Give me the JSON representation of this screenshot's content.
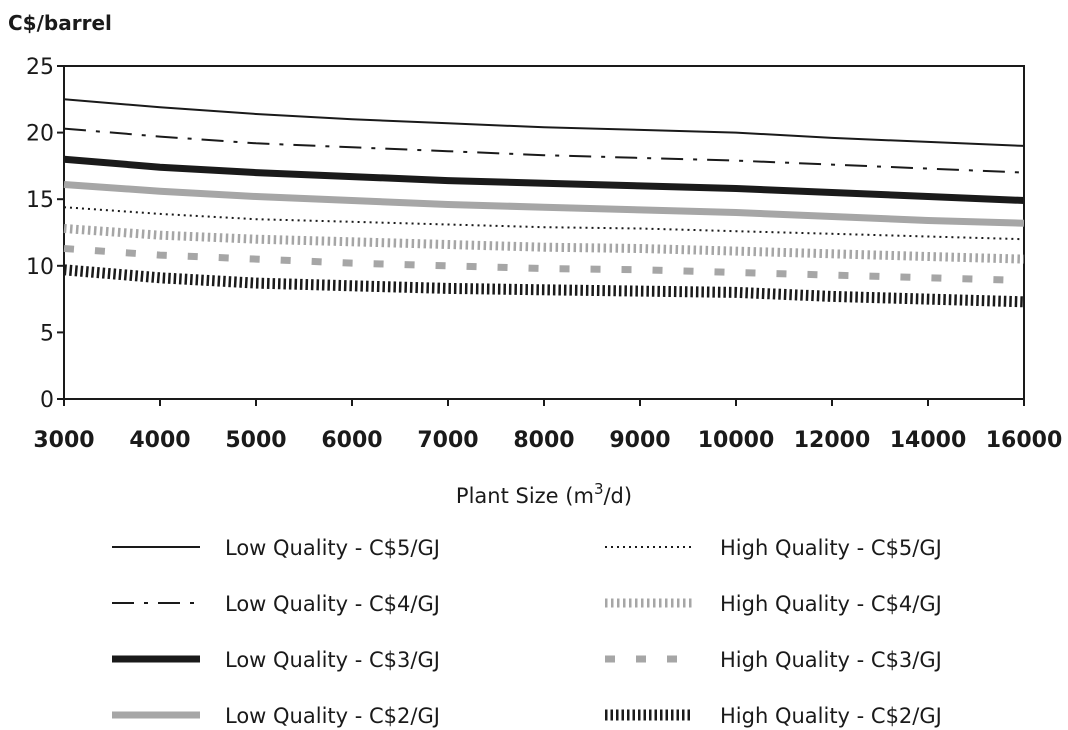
{
  "chart_data": {
    "type": "line",
    "title": "",
    "ylabel": "C$/barrel",
    "xlabel_prefix": "Plant Size (m",
    "xlabel_sup": "3",
    "xlabel_suffix": "/d)",
    "ylim": [
      0,
      25
    ],
    "yticks": [
      "0",
      "5",
      "10",
      "15",
      "20",
      "25"
    ],
    "categories": [
      "3000",
      "4000",
      "5000",
      "6000",
      "7000",
      "8000",
      "9000",
      "10000",
      "12000",
      "14000",
      "16000"
    ],
    "grid": false,
    "legend_position": "bottom",
    "series": [
      {
        "name": "Low Quality -  C$5/GJ",
        "style": "thin-solid",
        "color": "#1a1a1a",
        "values": [
          22.5,
          21.9,
          21.4,
          21.0,
          20.7,
          20.4,
          20.2,
          20.0,
          19.6,
          19.3,
          19.0
        ]
      },
      {
        "name": "Low Quality -  C$4/GJ",
        "style": "dash-dot",
        "color": "#1a1a1a",
        "values": [
          20.3,
          19.7,
          19.2,
          18.9,
          18.6,
          18.3,
          18.1,
          17.9,
          17.6,
          17.3,
          17.0
        ]
      },
      {
        "name": "Low Quality -  C$3/GJ",
        "style": "thick-solid",
        "color": "#1a1a1a",
        "values": [
          18.0,
          17.4,
          17.0,
          16.7,
          16.4,
          16.2,
          16.0,
          15.8,
          15.5,
          15.2,
          14.9
        ]
      },
      {
        "name": "Low Quality -  C$2/GJ",
        "style": "thick-solid-gray",
        "color": "#a6a6a6",
        "values": [
          16.1,
          15.6,
          15.2,
          14.9,
          14.6,
          14.4,
          14.2,
          14.0,
          13.7,
          13.4,
          13.2
        ]
      },
      {
        "name": "High Quality - C$5/GJ",
        "style": "dotted",
        "color": "#1a1a1a",
        "values": [
          14.4,
          13.9,
          13.5,
          13.3,
          13.1,
          12.9,
          12.8,
          12.6,
          12.4,
          12.2,
          12.0
        ]
      },
      {
        "name": "High Quality - C$4/GJ",
        "style": "hatch-gray",
        "color": "#a6a6a6",
        "values": [
          12.8,
          12.3,
          12.0,
          11.8,
          11.6,
          11.4,
          11.3,
          11.1,
          10.9,
          10.7,
          10.5
        ]
      },
      {
        "name": "High Quality - C$3/GJ",
        "style": "dashed-gray",
        "color": "#a6a6a6",
        "values": [
          11.3,
          10.8,
          10.5,
          10.2,
          10.0,
          9.8,
          9.7,
          9.5,
          9.3,
          9.1,
          8.9
        ]
      },
      {
        "name": "High Quality - C$2/GJ",
        "style": "hatch-black",
        "color": "#1a1a1a",
        "values": [
          9.7,
          9.1,
          8.7,
          8.5,
          8.3,
          8.2,
          8.1,
          8.0,
          7.7,
          7.5,
          7.3
        ]
      }
    ]
  }
}
